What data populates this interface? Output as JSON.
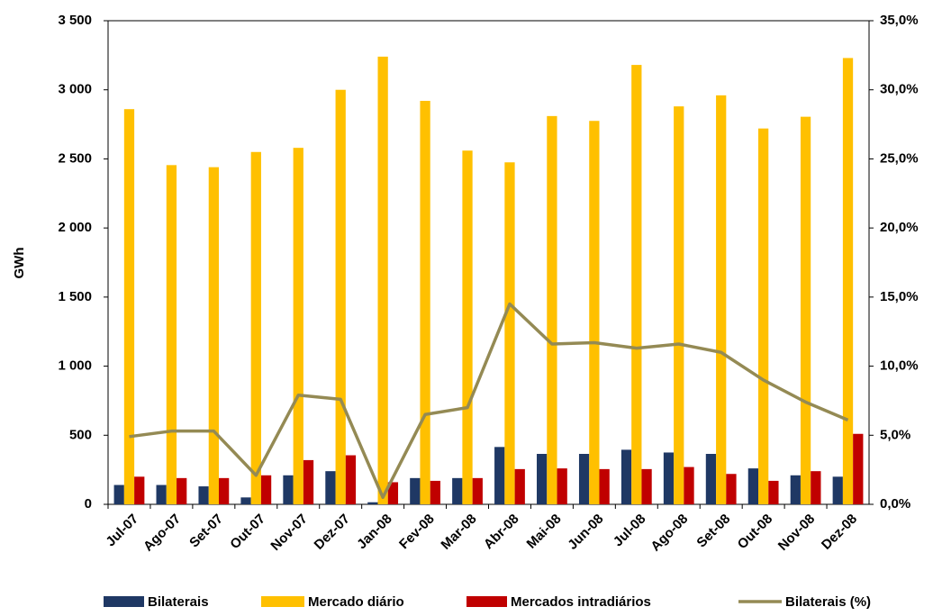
{
  "chart_data": {
    "type": "bar-line",
    "y_label": "GWh",
    "categories": [
      "Jul-07",
      "Ago-07",
      "Set-07",
      "Out-07",
      "Nov-07",
      "Dez-07",
      "Jan-08",
      "Fev-08",
      "Mar-08",
      "Abr-08",
      "Mai-08",
      "Jun-08",
      "Jul-08",
      "Ago-08",
      "Set-08",
      "Out-08",
      "Nov-08",
      "Dez-08"
    ],
    "series": [
      {
        "name": "Bilaterais",
        "color": "#1f3864",
        "type": "bar",
        "values": [
          140,
          140,
          130,
          50,
          210,
          240,
          15,
          190,
          190,
          415,
          365,
          365,
          395,
          375,
          365,
          260,
          210,
          200
        ]
      },
      {
        "name": "Mercado diário",
        "color": "#ffc000",
        "type": "bar",
        "values": [
          2860,
          2455,
          2440,
          2550,
          2580,
          3000,
          3240,
          2920,
          2560,
          2475,
          2810,
          2775,
          3180,
          2880,
          2960,
          2720,
          2805,
          3230
        ]
      },
      {
        "name": "Mercados intradiários",
        "color": "#c00000",
        "type": "bar",
        "values": [
          200,
          190,
          190,
          210,
          320,
          355,
          160,
          170,
          190,
          255,
          260,
          255,
          255,
          270,
          220,
          170,
          240,
          510
        ]
      },
      {
        "name": "Bilaterais (%)",
        "color": "#948a54",
        "type": "line",
        "axis": "y2",
        "values": [
          4.9,
          5.3,
          5.3,
          2.1,
          7.9,
          7.6,
          0.5,
          6.5,
          7.0,
          14.5,
          11.6,
          11.7,
          11.3,
          11.6,
          11.0,
          9.0,
          7.4,
          6.1
        ]
      }
    ],
    "ylim": [
      0,
      3500
    ],
    "yticks": [
      0,
      500,
      {
        "value": 1000,
        "label": "1 000"
      },
      {
        "value": 1500,
        "label": "1 500"
      },
      {
        "value": 2000,
        "label": "2 000"
      },
      {
        "value": 2500,
        "label": "2 500"
      },
      {
        "value": 3000,
        "label": "3 000"
      },
      {
        "value": 3500,
        "label": "3 500"
      }
    ],
    "y2lim": [
      0,
      35
    ],
    "y2ticks": [
      {
        "value": 0,
        "label": "0,0%"
      },
      {
        "value": 5,
        "label": "5,0%"
      },
      {
        "value": 10,
        "label": "10,0%"
      },
      {
        "value": 15,
        "label": "15,0%"
      },
      {
        "value": 20,
        "label": "20,0%"
      },
      {
        "value": 25,
        "label": "25,0%"
      },
      {
        "value": 30,
        "label": "30,0%"
      },
      {
        "value": 35,
        "label": "35,0%"
      }
    ],
    "legend": "bottom",
    "grid": false
  }
}
